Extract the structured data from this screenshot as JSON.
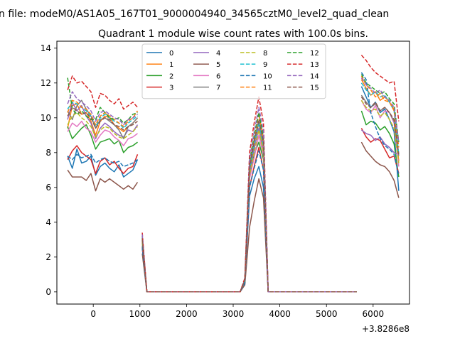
{
  "chart_data": {
    "type": "line",
    "suptitle": "n file: modeM0/AS1A05_167T01_9000004940_34565cztM0_level2_quad_clean",
    "title": "Quadrant 1 module wise count rates with 100.0s bins.",
    "xlabel": "",
    "ylabel": "",
    "x_offset_label": "+3.8286e8",
    "xlim": [
      -780,
      6780
    ],
    "ylim": [
      -0.7,
      14.4
    ],
    "xticks": [
      0,
      1000,
      2000,
      3000,
      4000,
      5000,
      6000
    ],
    "yticks": [
      0,
      2,
      4,
      6,
      8,
      10,
      12,
      14
    ],
    "grid": false,
    "legend": {
      "position": "top-center",
      "columns": 4
    },
    "x_segments": [
      [
        -550,
        -450,
        -350,
        -250,
        -150,
        -50,
        50,
        150,
        250,
        350,
        450,
        550,
        650,
        750,
        850,
        950
      ],
      [
        1050,
        1150,
        3150,
        3250,
        3350,
        3450,
        3550,
        3650,
        3750,
        3850,
        5550,
        5650
      ],
      [
        5750,
        5850,
        5950,
        6050,
        6150,
        6250,
        6350,
        6450,
        6550
      ]
    ],
    "series": [
      {
        "name": "0",
        "color": "#1f77b4",
        "dash": false,
        "segments": [
          [
            7.8,
            7.1,
            8.2,
            7.4,
            7.5,
            7.8,
            6.7,
            7.2,
            7.4,
            7.1,
            6.9,
            7.3,
            6.6,
            6.8,
            7.0,
            7.6
          ],
          [
            2.5,
            0,
            0,
            0.5,
            5.5,
            6.5,
            7.2,
            6.0,
            0,
            0,
            0,
            0
          ],
          [
            11.8,
            11.2,
            10.6,
            10.9,
            10.3,
            10.5,
            9.9,
            9.2,
            5.8
          ]
        ]
      },
      {
        "name": "1",
        "color": "#ff7f0e",
        "dash": false,
        "segments": [
          [
            9.4,
            10.7,
            10.8,
            10.2,
            10.3,
            9.8,
            9.0,
            9.8,
            10.1,
            10.0,
            9.6,
            9.4,
            9.2,
            9.5,
            9.7,
            10.0
          ],
          [
            3.0,
            0,
            0,
            0.7,
            7.0,
            8.5,
            9.7,
            8.3,
            0,
            0,
            0,
            0
          ],
          [
            12.2,
            11.7,
            11.3,
            11.5,
            11.0,
            11.2,
            10.9,
            10.5,
            7.5
          ]
        ]
      },
      {
        "name": "2",
        "color": "#2ca02c",
        "dash": false,
        "segments": [
          [
            9.5,
            8.8,
            9.1,
            9.4,
            9.6,
            9.0,
            8.2,
            8.6,
            8.7,
            8.8,
            8.5,
            8.7,
            8.0,
            8.3,
            8.4,
            8.6
          ],
          [
            2.8,
            0,
            0,
            0.6,
            6.6,
            7.9,
            8.6,
            7.6,
            0,
            0,
            0,
            0
          ],
          [
            10.4,
            9.6,
            9.8,
            9.7,
            9.3,
            9.5,
            9.1,
            8.5,
            6.6
          ]
        ]
      },
      {
        "name": "3",
        "color": "#d62728",
        "dash": false,
        "segments": [
          [
            7.6,
            8.1,
            8.4,
            8.0,
            7.8,
            7.6,
            6.8,
            7.5,
            7.7,
            7.3,
            7.5,
            7.1,
            6.8,
            7.1,
            7.2,
            7.9
          ],
          [
            2.6,
            0,
            0,
            0.5,
            6.0,
            7.2,
            8.3,
            7.0,
            0,
            0,
            0,
            0
          ],
          [
            9.4,
            8.9,
            8.6,
            8.8,
            8.7,
            8.2,
            7.7,
            7.8,
            6.8
          ]
        ]
      },
      {
        "name": "4",
        "color": "#9467bd",
        "dash": false,
        "segments": [
          [
            9.9,
            10.9,
            10.4,
            10.7,
            10.1,
            9.7,
            8.8,
            9.4,
            9.7,
            9.5,
            9.2,
            9.0,
            8.9,
            9.3,
            9.2,
            9.6
          ],
          [
            3.0,
            0,
            0,
            0.7,
            6.8,
            8.2,
            9.4,
            8.0,
            0,
            0,
            0,
            0
          ],
          [
            9.3,
            9.1,
            9.0,
            8.7,
            8.9,
            8.5,
            8.3,
            8.0,
            7.9
          ]
        ]
      },
      {
        "name": "5",
        "color": "#8c564b",
        "dash": false,
        "segments": [
          [
            7.0,
            6.6,
            6.6,
            6.6,
            6.4,
            6.8,
            5.8,
            6.5,
            6.3,
            6.5,
            6.3,
            6.1,
            5.9,
            6.1,
            5.9,
            6.3
          ],
          [
            2.2,
            0,
            0,
            0.4,
            3.7,
            5.2,
            6.5,
            5.4,
            0,
            0,
            0,
            0
          ],
          [
            8.6,
            8.1,
            7.8,
            7.5,
            7.3,
            7.2,
            6.9,
            6.4,
            5.4
          ]
        ]
      },
      {
        "name": "6",
        "color": "#e377c2",
        "dash": false,
        "segments": [
          [
            9.2,
            9.7,
            9.5,
            9.8,
            9.4,
            9.2,
            8.6,
            9.0,
            9.3,
            9.2,
            8.9,
            8.7,
            8.4,
            8.8,
            8.9,
            9.1
          ],
          [
            2.9,
            0,
            0,
            0.6,
            6.5,
            7.7,
            9.0,
            7.8,
            0,
            0,
            0,
            0
          ],
          [
            11.0,
            10.5,
            10.3,
            10.7,
            10.0,
            10.4,
            10.3,
            9.7,
            7.2
          ]
        ]
      },
      {
        "name": "7",
        "color": "#7f7f7f",
        "dash": false,
        "segments": [
          [
            10.4,
            9.9,
            10.7,
            11.0,
            10.5,
            10.1,
            9.4,
            9.9,
            10.0,
            9.8,
            9.6,
            9.3,
            8.8,
            9.5,
            9.7,
            10.0
          ],
          [
            3.1,
            0,
            0,
            0.7,
            7.2,
            8.7,
            9.8,
            8.5,
            0,
            0,
            0,
            0
          ],
          [
            11.3,
            10.9,
            10.6,
            10.8,
            10.4,
            10.6,
            10.3,
            9.8,
            7.8
          ]
        ]
      },
      {
        "name": "8",
        "color": "#bcbd22",
        "dash": true,
        "segments": [
          [
            9.6,
            10.1,
            10.3,
            10.0,
            9.8,
            9.5,
            8.9,
            9.3,
            9.5,
            9.4,
            9.1,
            8.9,
            8.8,
            9.0,
            9.2,
            9.5
          ],
          [
            2.9,
            0,
            0,
            0.6,
            6.7,
            8.0,
            9.3,
            8.0,
            0,
            0,
            0,
            0
          ],
          [
            11.0,
            10.6,
            10.4,
            10.5,
            10.1,
            10.3,
            9.9,
            9.4,
            7.4
          ]
        ]
      },
      {
        "name": "9",
        "color": "#17becf",
        "dash": true,
        "segments": [
          [
            10.5,
            10.9,
            10.8,
            10.6,
            10.4,
            10.1,
            9.5,
            10.0,
            10.2,
            10.0,
            9.8,
            9.7,
            9.4,
            9.7,
            9.9,
            10.1
          ],
          [
            3.1,
            0,
            0,
            0.6,
            7.0,
            8.5,
            9.7,
            8.4,
            0,
            0,
            0,
            0
          ],
          [
            12.0,
            11.6,
            11.3,
            11.5,
            11.2,
            11.3,
            10.9,
            10.4,
            7.9
          ]
        ]
      },
      {
        "name": "10",
        "color": "#1f77b4",
        "dash": true,
        "segments": [
          [
            7.8,
            7.6,
            7.9,
            7.7,
            7.8,
            7.9,
            7.4,
            7.6,
            7.7,
            7.5,
            7.4,
            7.5,
            7.2,
            7.3,
            7.4,
            7.6
          ],
          [
            2.6,
            0,
            0,
            0.5,
            6.0,
            7.1,
            8.1,
            7.0,
            0,
            0,
            0,
            0
          ],
          [
            12.6,
            12.2,
            10.3,
            9.5,
            8.8,
            8.4,
            8.2,
            7.9,
            6.7
          ]
        ]
      },
      {
        "name": "11",
        "color": "#ff7f0e",
        "dash": true,
        "segments": [
          [
            10.3,
            11.0,
            10.9,
            10.6,
            10.5,
            10.2,
            9.6,
            10.1,
            10.3,
            10.1,
            9.9,
            9.7,
            9.5,
            9.8,
            10.0,
            10.4
          ],
          [
            3.2,
            0,
            0,
            0.7,
            7.4,
            8.9,
            10.2,
            8.8,
            0,
            0,
            0,
            0
          ],
          [
            12.4,
            11.9,
            11.6,
            11.2,
            11.4,
            11.0,
            10.9,
            10.4,
            8.3
          ]
        ]
      },
      {
        "name": "12",
        "color": "#2ca02c",
        "dash": true,
        "segments": [
          [
            12.3,
            10.5,
            10.2,
            10.4,
            10.1,
            9.9,
            9.9,
            10.6,
            10.3,
            10.0,
            9.9,
            10.0,
            9.7,
            9.9,
            10.2,
            10.3
          ],
          [
            3.2,
            0,
            0,
            0.7,
            7.5,
            9.0,
            10.3,
            8.9,
            0,
            0,
            0,
            0
          ],
          [
            12.5,
            12.0,
            11.8,
            11.6,
            11.4,
            11.5,
            11.1,
            10.8,
            8.6
          ]
        ]
      },
      {
        "name": "13",
        "color": "#d62728",
        "dash": true,
        "segments": [
          [
            11.6,
            12.4,
            12.0,
            12.1,
            11.8,
            11.5,
            10.6,
            11.4,
            11.3,
            11.0,
            10.8,
            11.1,
            10.5,
            10.7,
            10.9,
            10.6
          ],
          [
            3.4,
            0,
            0,
            0.8,
            8.0,
            9.7,
            11.2,
            9.7,
            0,
            0,
            0,
            0
          ],
          [
            13.6,
            13.3,
            12.9,
            12.6,
            12.4,
            12.2,
            12.0,
            12.1,
            9.8
          ]
        ]
      },
      {
        "name": "14",
        "color": "#9467bd",
        "dash": true,
        "segments": [
          [
            10.8,
            11.5,
            11.1,
            10.9,
            10.7,
            10.4,
            9.8,
            10.3,
            10.4,
            10.2,
            10.0,
            9.9,
            9.6,
            9.9,
            10.0,
            10.2
          ],
          [
            3.3,
            0,
            0,
            0.7,
            7.6,
            9.2,
            10.6,
            9.2,
            0,
            0,
            0,
            0
          ],
          [
            12.3,
            11.9,
            11.7,
            11.4,
            11.6,
            11.2,
            11.0,
            10.6,
            8.6
          ]
        ]
      },
      {
        "name": "15",
        "color": "#8c564b",
        "dash": true,
        "segments": [
          [
            10.1,
            10.6,
            10.4,
            10.2,
            10.3,
            10.0,
            9.4,
            9.8,
            10.0,
            9.9,
            9.6,
            9.5,
            9.3,
            9.5,
            9.6,
            9.8
          ],
          [
            3.0,
            0,
            0,
            0.7,
            7.1,
            8.6,
            9.9,
            8.6,
            0,
            0,
            0,
            0
          ],
          [
            11.2,
            10.8,
            10.6,
            10.9,
            10.4,
            10.6,
            10.3,
            9.9,
            7.9
          ]
        ]
      }
    ]
  }
}
